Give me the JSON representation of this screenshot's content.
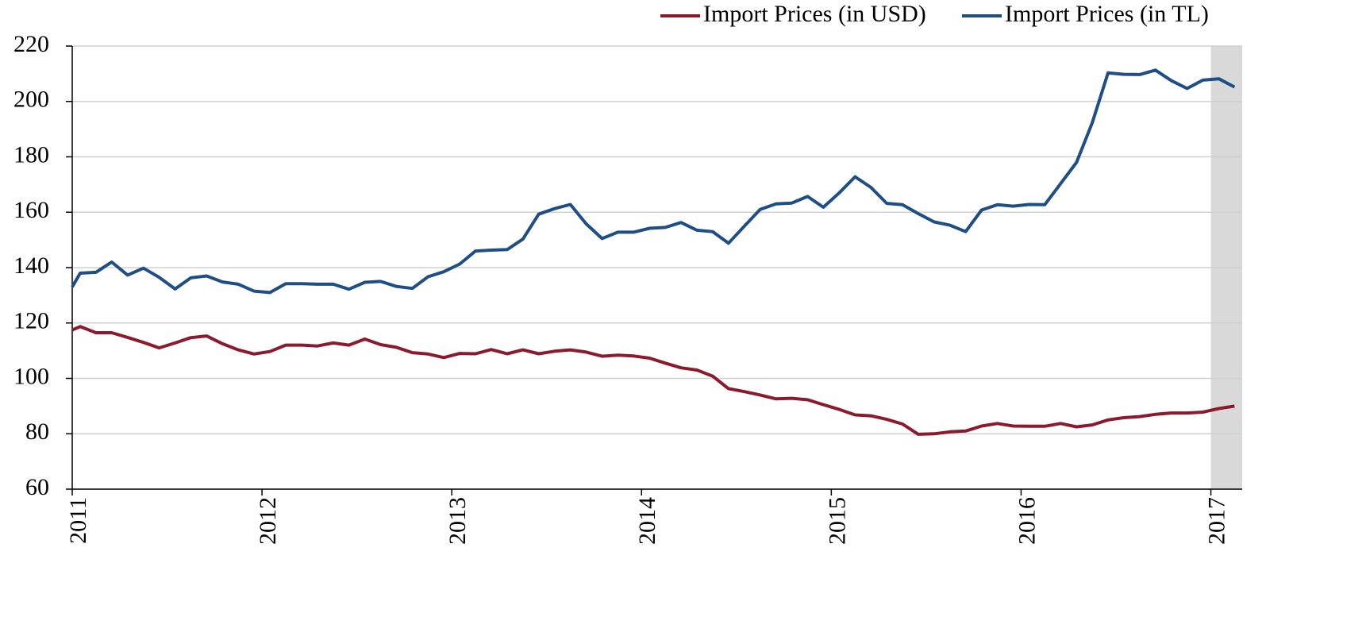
{
  "chart_data": {
    "type": "line",
    "x": [
      2011.0,
      2011.042,
      2011.125,
      2011.208,
      2011.292,
      2011.375,
      2011.458,
      2011.542,
      2011.625,
      2011.708,
      2011.792,
      2011.875,
      2011.958,
      2012.042,
      2012.125,
      2012.208,
      2012.292,
      2012.375,
      2012.458,
      2012.542,
      2012.625,
      2012.708,
      2012.792,
      2012.875,
      2012.958,
      2013.042,
      2013.125,
      2013.208,
      2013.292,
      2013.375,
      2013.458,
      2013.542,
      2013.625,
      2013.708,
      2013.792,
      2013.875,
      2013.958,
      2014.042,
      2014.125,
      2014.208,
      2014.292,
      2014.375,
      2014.458,
      2014.542,
      2014.625,
      2014.708,
      2014.792,
      2014.875,
      2014.958,
      2015.042,
      2015.125,
      2015.208,
      2015.292,
      2015.375,
      2015.458,
      2015.542,
      2015.625,
      2015.708,
      2015.792,
      2015.875,
      2015.958,
      2016.042,
      2016.125,
      2016.208,
      2016.292,
      2016.375,
      2016.458,
      2016.542,
      2016.625,
      2016.708,
      2016.792,
      2016.875,
      2016.958,
      2017.042,
      2017.125
    ],
    "series": [
      {
        "name": "Import Prices (in USD)",
        "color": "#8b1a2e",
        "values": [
          117.5,
          118.7,
          116.5,
          116.5,
          114.8,
          113,
          111,
          112.8,
          114.7,
          115.3,
          112.5,
          110.3,
          108.8,
          109.7,
          112,
          112,
          111.7,
          112.8,
          112,
          114.2,
          112.2,
          111.2,
          109.3,
          108.8,
          107.5,
          109,
          108.9,
          110.4,
          108.9,
          110.3,
          108.9,
          109.8,
          110.3,
          109.5,
          108,
          108.4,
          108.1,
          107.3,
          105.5,
          103.8,
          103,
          100.8,
          96.3,
          95.2,
          94,
          92.6,
          92.8,
          92.3,
          90.5,
          88.8,
          86.8,
          86.5,
          85.2,
          83.5,
          79.8,
          80,
          80.7,
          81,
          82.8,
          83.7,
          82.8,
          82.7,
          82.7,
          83.7,
          82.5,
          83.2,
          85,
          85.8,
          86.2,
          87,
          87.5,
          87.5,
          87.8,
          89.1,
          90
        ]
      },
      {
        "name": "Import Prices (in TL)",
        "color": "#1f4e84",
        "values": [
          133,
          138,
          138.3,
          142,
          137.3,
          139.8,
          136.5,
          132.3,
          136.3,
          137,
          134.8,
          134,
          131.5,
          131,
          134.2,
          134.2,
          134,
          134,
          132.2,
          134.7,
          135,
          133.2,
          132.5,
          136.7,
          138.5,
          141.3,
          146,
          146.3,
          146.5,
          150.3,
          159.3,
          161.3,
          162.8,
          155.8,
          150.5,
          152.8,
          152.8,
          154.2,
          154.5,
          156.3,
          153.5,
          153,
          148.8,
          155,
          161,
          163,
          163.3,
          165.7,
          161.8,
          167,
          172.8,
          169,
          163.2,
          162.7,
          159.5,
          156.5,
          155.3,
          153,
          160.8,
          162.7,
          162.2,
          162.8,
          162.7,
          170.3,
          178,
          192.3,
          210.3,
          209.8,
          209.7,
          211.3,
          207.5,
          204.7,
          207.7,
          208.2,
          205.2
        ]
      }
    ],
    "xlim": [
      2011,
      2017.165
    ],
    "xticks": [
      2011,
      2012,
      2013,
      2014,
      2015,
      2016,
      2017
    ],
    "ylim": [
      60,
      220
    ],
    "yticks": [
      60,
      80,
      100,
      120,
      140,
      160,
      180,
      200,
      220
    ],
    "grid": true,
    "shaded_from": 2017,
    "shade_color": "#d9d9d9",
    "legend": "top-right"
  }
}
